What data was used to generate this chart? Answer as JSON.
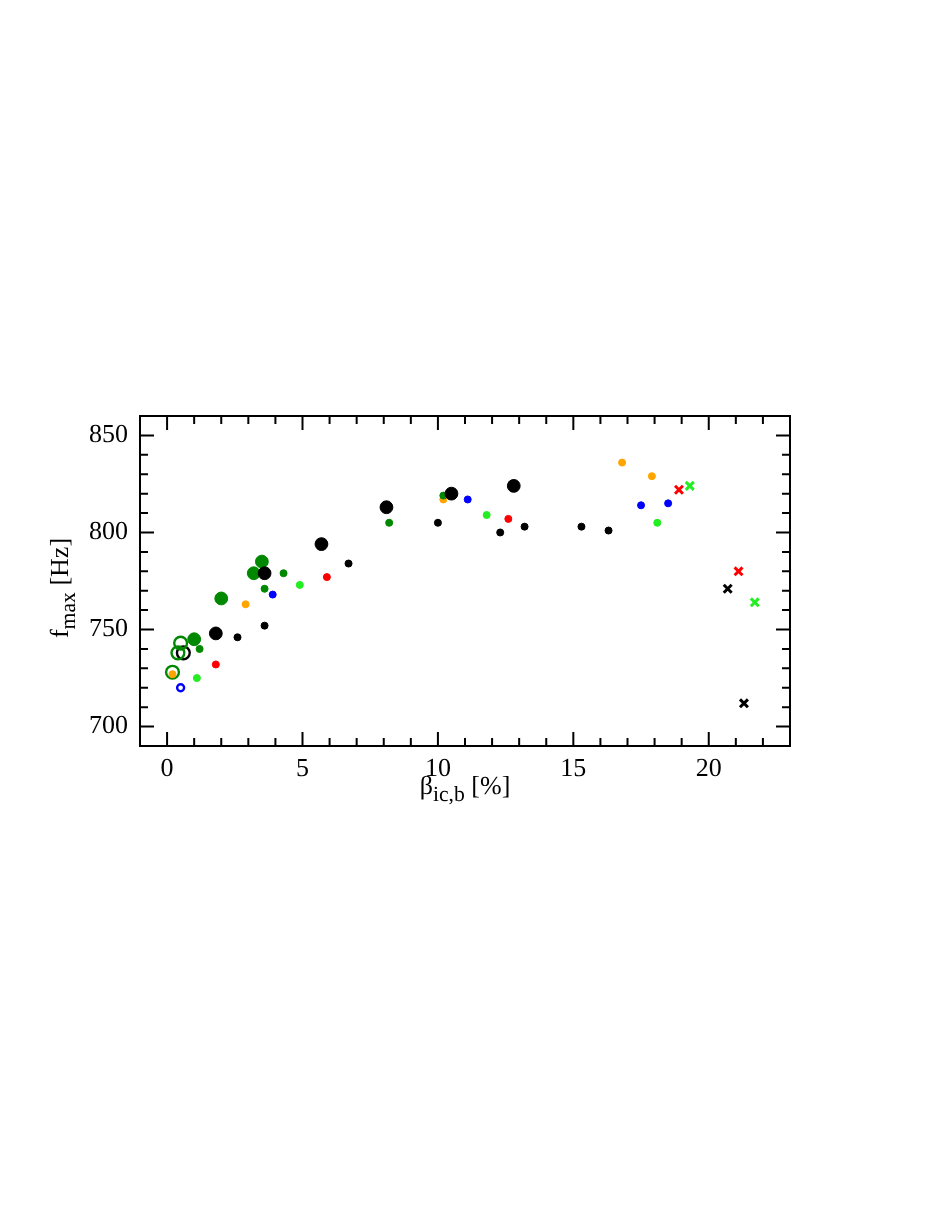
{
  "chart_data": {
    "type": "scatter",
    "xlabel": "β$_{ic,b}$ [%]",
    "ylabel": "f$_{max}$ [Hz]",
    "xlim": [
      -1,
      23
    ],
    "ylim": [
      690,
      860
    ],
    "xticks": [
      0,
      {
        "value": 1,
        "label": null
      },
      {
        "value": 2,
        "label": null
      },
      {
        "value": 3,
        "label": null
      },
      {
        "value": 4,
        "label": null
      },
      5,
      {
        "value": 6,
        "label": null
      },
      {
        "value": 7,
        "label": null
      },
      {
        "value": 8,
        "label": null
      },
      {
        "value": 9,
        "label": null
      },
      10,
      {
        "value": 11,
        "label": null
      },
      {
        "value": 12,
        "label": null
      },
      {
        "value": 13,
        "label": null
      },
      {
        "value": 14,
        "label": null
      },
      15,
      {
        "value": 16,
        "label": null
      },
      {
        "value": 17,
        "label": null
      },
      {
        "value": 18,
        "label": null
      },
      {
        "value": 19,
        "label": null
      },
      20,
      {
        "value": 21,
        "label": null
      },
      {
        "value": 22,
        "label": null
      }
    ],
    "yticks": [
      700,
      {
        "value": 710,
        "label": null
      },
      {
        "value": 720,
        "label": null
      },
      {
        "value": 730,
        "label": null
      },
      {
        "value": 740,
        "label": null
      },
      750,
      {
        "value": 760,
        "label": null
      },
      {
        "value": 770,
        "label": null
      },
      {
        "value": 780,
        "label": null
      },
      {
        "value": 790,
        "label": null
      },
      800,
      {
        "value": 810,
        "label": null
      },
      {
        "value": 820,
        "label": null
      },
      {
        "value": 830,
        "label": null
      },
      {
        "value": 840,
        "label": null
      },
      850
    ],
    "marker": "circle",
    "series": [
      {
        "color": "#000000",
        "x": [
          5.7,
          3.6,
          1.8,
          8.1,
          10.5,
          12.8
        ],
        "values": [
          794,
          779,
          748,
          813,
          820,
          824
        ],
        "sizes": [
          1,
          1,
          1,
          1,
          1,
          1
        ]
      },
      {
        "color": "#000000",
        "x": [
          6.7,
          2.6,
          3.6,
          10.0,
          12.3,
          13.2,
          15.3,
          16.3
        ],
        "values": [
          784,
          746,
          752,
          805,
          800,
          803,
          803,
          801
        ],
        "sizes": [
          0.3,
          0.3,
          0.3,
          0.3,
          0.3,
          0.3,
          0.3,
          0.3
        ]
      },
      {
        "color": "#008800",
        "x": [
          3.5,
          3.2,
          2.0,
          1.0
        ],
        "values": [
          785,
          779,
          766,
          745
        ],
        "sizes": [
          1,
          1,
          1,
          1
        ]
      },
      {
        "color": "#008800",
        "x": [
          4.3,
          3.6,
          1.2,
          8.2,
          10.2
        ],
        "values": [
          779,
          771,
          740,
          805,
          819
        ],
        "sizes": [
          0.3,
          0.3,
          0.3,
          0.3,
          0.3
        ]
      },
      {
        "color": "#ffa500",
        "x": [
          2.9,
          0.2,
          10.2,
          16.8,
          17.9
        ],
        "values": [
          763,
          727,
          817,
          836,
          829
        ],
        "sizes": [
          0.3,
          0.3,
          0.3,
          0.3,
          0.3
        ]
      },
      {
        "color": "#008800",
        "x": [
          0.5,
          0.4,
          0.2
        ],
        "values": [
          743,
          738,
          728
        ],
        "sizes": [
          1,
          1,
          1
        ],
        "marker": "open circle"
      },
      {
        "color": "#000000",
        "x": [
          0.6
        ],
        "values": [
          738
        ],
        "sizes": [
          1
        ],
        "marker": "open circle"
      },
      {
        "color": "#22ee22",
        "x": [
          4.9,
          1.1,
          11.8,
          18.1
        ],
        "values": [
          773,
          725,
          809,
          805
        ],
        "sizes": [
          0.3,
          0.3,
          0.3,
          0.3
        ]
      },
      {
        "color": "#ff0000",
        "x": [
          5.9,
          1.8,
          12.6
        ],
        "values": [
          777,
          732,
          807
        ],
        "sizes": [
          0.3,
          0.3,
          0.3
        ]
      },
      {
        "color": "#0000ff",
        "x": [
          3.9,
          11.1,
          17.5,
          18.5
        ],
        "values": [
          768,
          817,
          814,
          815
        ],
        "sizes": [
          0.3,
          0.3,
          0.3,
          0.3
        ]
      },
      {
        "color": "#0000ff",
        "x": [
          0.5
        ],
        "values": [
          720
        ],
        "sizes": [
          0.3
        ],
        "marker": "open circle"
      },
      {
        "color": "#ff0000",
        "x": [
          18.9,
          21.1
        ],
        "values": [
          822,
          780
        ],
        "marker": "cross"
      },
      {
        "color": "#22ee22",
        "x": [
          19.3,
          21.7
        ],
        "values": [
          824,
          764
        ],
        "marker": "cross"
      },
      {
        "color": "#000000",
        "x": [
          20.7,
          21.3
        ],
        "values": [
          771,
          712
        ],
        "marker": "cross"
      }
    ]
  }
}
